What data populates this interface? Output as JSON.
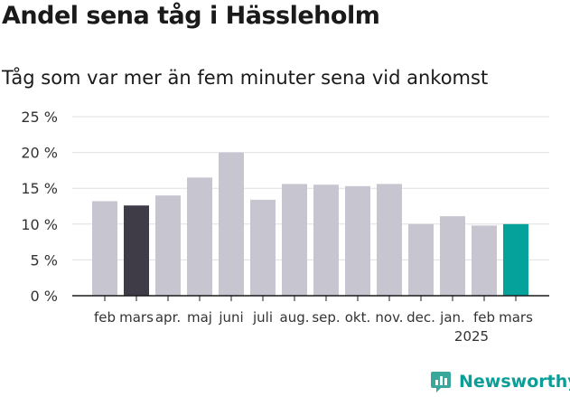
{
  "header": {
    "title": "Andel sena tåg i Hässleholm",
    "subtitle": "Tåg som var mer än fem minuter sena vid ankomst"
  },
  "brand": {
    "name": "Newsworthy",
    "icon": "bar-chart-logo-icon"
  },
  "colors": {
    "base": "#c7c5d0",
    "previous_year": "#3f3c48",
    "highlight": "#04a29a",
    "grid": "#e0e0e0"
  },
  "chart_data": {
    "type": "bar",
    "categories": [
      "feb",
      "mars",
      "apr.",
      "maj",
      "juni",
      "juli",
      "aug.",
      "sep.",
      "okt.",
      "nov.",
      "dec.",
      "jan.",
      "feb",
      "mars"
    ],
    "year_label": "2025",
    "year_label_under_index": 12,
    "values": [
      13.2,
      12.6,
      14.0,
      16.5,
      20.0,
      13.4,
      15.6,
      15.5,
      15.3,
      15.6,
      10.0,
      11.1,
      9.8,
      10.0
    ],
    "highlight_index": 13,
    "comparison_index": 1,
    "ylim": [
      0,
      25
    ],
    "yticks": [
      0,
      5,
      10,
      15,
      20,
      25
    ],
    "ytick_labels": [
      "0 %",
      "5 %",
      "10 %",
      "15 %",
      "20 %",
      "25 %"
    ],
    "grid": true,
    "xlabel": "",
    "ylabel": ""
  }
}
